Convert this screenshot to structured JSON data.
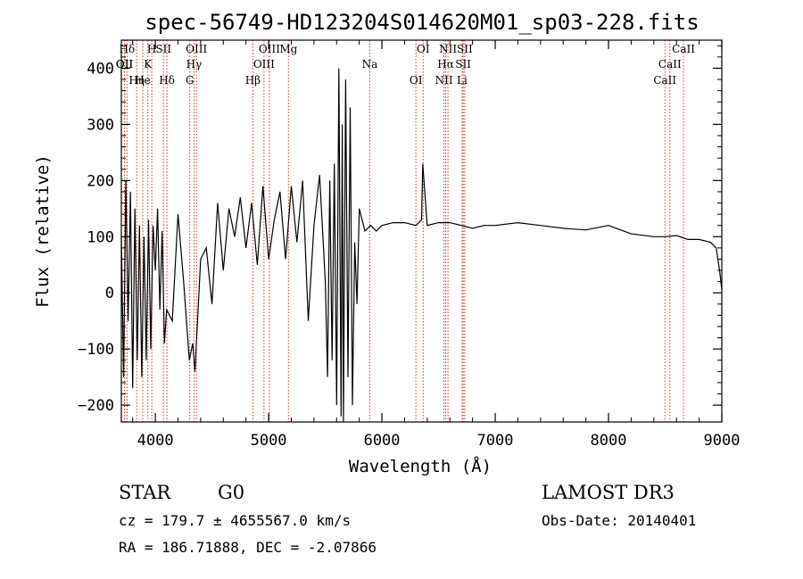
{
  "chart_data": {
    "type": "line",
    "title": "spec-56749-HD123204S014620M01_sp03-228.fits",
    "xlabel": "Wavelength (Å)",
    "ylabel": "Flux (relative)",
    "xlim": [
      3700,
      9000
    ],
    "ylim": [
      -230,
      450
    ],
    "xticks": [
      4000,
      5000,
      6000,
      7000,
      8000,
      9000
    ],
    "yticks": [
      -200,
      -100,
      0,
      100,
      200,
      300,
      400
    ],
    "xtick_labels": [
      "4000",
      "5000",
      "6000",
      "7000",
      "8000",
      "9000"
    ],
    "ytick_labels": [
      "−200",
      "−100",
      "0",
      "100",
      "200",
      "300",
      "400"
    ],
    "grid": false,
    "series": [
      {
        "name": "spectrum",
        "x": [
          3700,
          3720,
          3740,
          3760,
          3780,
          3800,
          3820,
          3840,
          3860,
          3880,
          3900,
          3920,
          3940,
          3960,
          3980,
          4000,
          4020,
          4040,
          4060,
          4080,
          4100,
          4150,
          4200,
          4250,
          4300,
          4330,
          4350,
          4400,
          4450,
          4500,
          4550,
          4600,
          4650,
          4700,
          4750,
          4800,
          4850,
          4900,
          4950,
          5000,
          5050,
          5100,
          5150,
          5200,
          5250,
          5300,
          5350,
          5400,
          5450,
          5500,
          5520,
          5540,
          5560,
          5580,
          5600,
          5620,
          5640,
          5650,
          5660,
          5680,
          5700,
          5720,
          5740,
          5760,
          5780,
          5800,
          5850,
          5900,
          5950,
          6000,
          6100,
          6200,
          6300,
          6350,
          6360,
          6400,
          6500,
          6600,
          6700,
          6800,
          6900,
          7000,
          7200,
          7400,
          7600,
          7800,
          8000,
          8200,
          8400,
          8500,
          8600,
          8700,
          8800,
          8900,
          8950,
          8980,
          9000
        ],
        "values": [
          100,
          -150,
          200,
          -50,
          180,
          -170,
          150,
          -120,
          120,
          -150,
          100,
          -120,
          130,
          -100,
          120,
          40,
          150,
          -30,
          110,
          -90,
          -30,
          -50,
          140,
          20,
          -120,
          -90,
          -140,
          60,
          80,
          -20,
          160,
          40,
          150,
          100,
          170,
          80,
          160,
          50,
          190,
          60,
          130,
          180,
          60,
          190,
          90,
          200,
          -50,
          120,
          210,
          20,
          -150,
          200,
          -120,
          230,
          -200,
          400,
          -220,
          300,
          -230,
          380,
          -150,
          330,
          -200,
          90,
          -20,
          150,
          110,
          120,
          110,
          120,
          125,
          125,
          120,
          130,
          230,
          120,
          125,
          125,
          120,
          115,
          120,
          120,
          125,
          120,
          115,
          112,
          120,
          105,
          100,
          100,
          102,
          95,
          95,
          90,
          80,
          40,
          5
        ]
      }
    ],
    "line_markers": [
      {
        "label": "Hδ",
        "wavelength": 3750
      },
      {
        "label": "K",
        "wavelength": 3934
      },
      {
        "label": "Hδ",
        "wavelength": 4102
      },
      {
        "label": "OIII",
        "wavelength": 4363
      },
      {
        "label": "Hγ",
        "wavelength": 4341
      },
      {
        "label": "G",
        "wavelength": 4304
      },
      {
        "label": "OIII",
        "wavelength": 5007
      },
      {
        "label": "OIII",
        "wavelength": 4959
      },
      {
        "label": "Hβ",
        "wavelength": 4861
      },
      {
        "label": "Mg",
        "wavelength": 5175
      },
      {
        "label": "Na",
        "wavelength": 5893
      },
      {
        "label": "OI",
        "wavelength": 6300
      },
      {
        "label": "OI",
        "wavelength": 6364
      },
      {
        "label": "Hα",
        "wavelength": 6563
      },
      {
        "label": "NII",
        "wavelength": 6548
      },
      {
        "label": "NII",
        "wavelength": 6583
      },
      {
        "label": "SII",
        "wavelength": 6717
      },
      {
        "label": "Li",
        "wavelength": 6708
      },
      {
        "label": "SII",
        "wavelength": 6731
      },
      {
        "label": "CaII",
        "wavelength": 8542
      },
      {
        "label": "CaII",
        "wavelength": 8498
      },
      {
        "label": "CaII",
        "wavelength": 8662
      },
      {
        "label": "OII",
        "wavelength": 3727
      },
      {
        "label": "He",
        "wavelength": 3889
      },
      {
        "label": "SII",
        "wavelength": 4072
      },
      {
        "label": "OII",
        "wavelength": 3729
      },
      {
        "label": "Hη",
        "wavelength": 3835
      },
      {
        "label": "H",
        "wavelength": 3969
      }
    ]
  },
  "info": {
    "class": "STAR",
    "subclass": "G0",
    "survey": "LAMOST DR3",
    "cz": "cz = 179.7 ± 4655567.0 km/s",
    "obs_date": "Obs-Date: 20140401",
    "radec": "RA = 186.71888, DEC =  -2.07866"
  },
  "colors": {
    "marker_line": "#c0392b",
    "spectrum": "#000000"
  }
}
